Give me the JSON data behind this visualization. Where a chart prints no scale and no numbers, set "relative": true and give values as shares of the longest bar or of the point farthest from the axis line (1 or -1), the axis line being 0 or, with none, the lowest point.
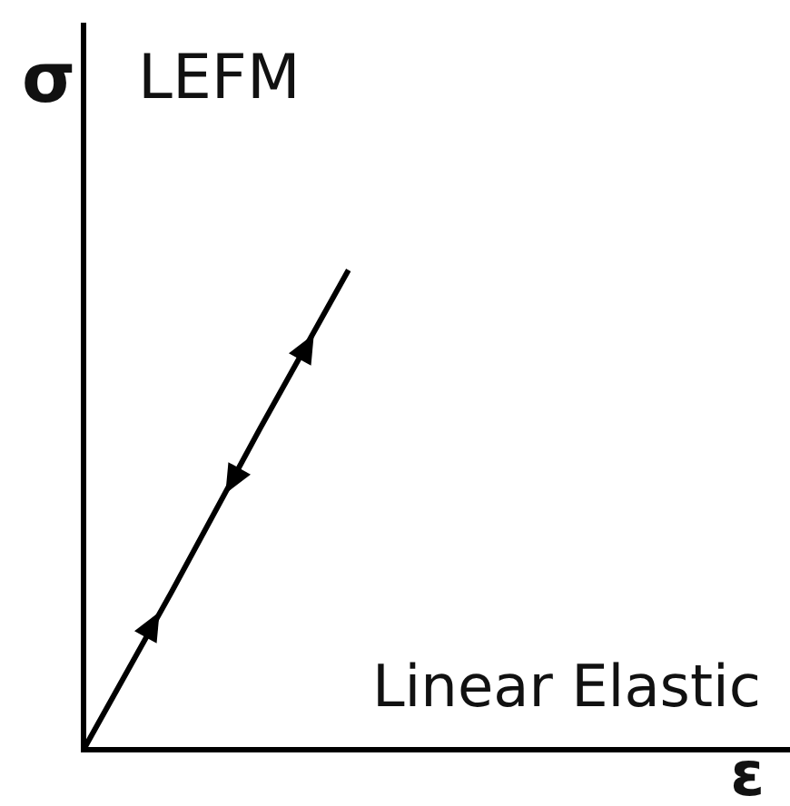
{
  "chart_data": {
    "type": "line",
    "title": "LEFM",
    "xlabel": "ε",
    "ylabel": "σ",
    "relative": true,
    "categories": [
      null,
      null,
      null,
      null,
      null,
      null,
      null,
      null,
      null
    ],
    "series": [
      {
        "color": "#000000",
        "values": [
          0,
          0.33,
          0.67,
          1,
          null,
          null,
          null,
          null,
          null
        ]
      }
    ],
    "annotations": [
      "Linear Elastic"
    ],
    "grid": false,
    "legend": false,
    "marker": "none",
    "line_style": "solid"
  }
}
